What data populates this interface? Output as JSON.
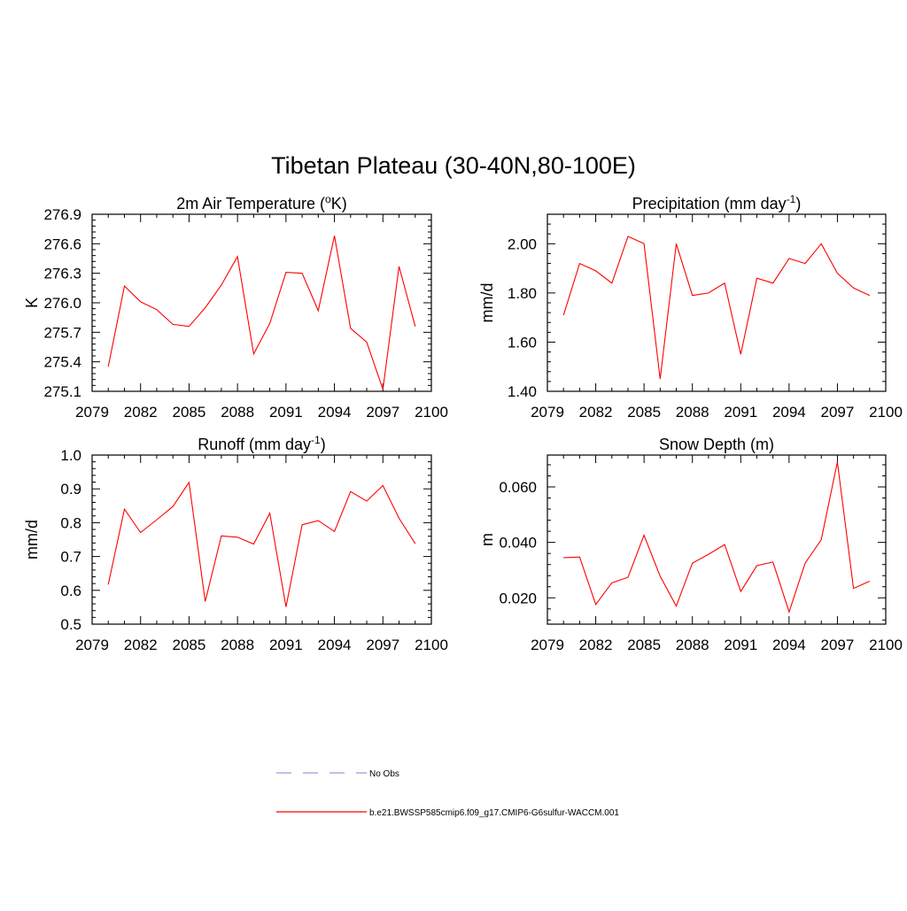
{
  "figure": {
    "title": "Tibetan Plateau (30-40N,80-100E)"
  },
  "legend": {
    "entries": [
      {
        "label": "No Obs",
        "color": "#9999dd",
        "dash": true
      },
      {
        "label": "b.e21.BWSSP585cmip6.f09_g17.CMIP6-G6sulfur-WACCM.001",
        "color": "#ff0000",
        "dash": false
      }
    ]
  },
  "chart_data": [
    {
      "type": "line",
      "title_main": "2m Air Temperature (",
      "title_sup": "o",
      "title_post": "K)",
      "ylabel": "K",
      "xlabel": "",
      "xlim": [
        2079,
        2100
      ],
      "ylim": [
        275.1,
        276.9
      ],
      "xticks": [
        2079,
        2082,
        2085,
        2088,
        2091,
        2094,
        2097,
        2100
      ],
      "yticks": [
        "275.1",
        "275.4",
        "275.7",
        "276.0",
        "276.3",
        "276.6",
        "276.9"
      ],
      "grid": false,
      "series": [
        {
          "color": "#ff0000",
          "x": [
            2080,
            2081,
            2082,
            2083,
            2084,
            2085,
            2086,
            2087,
            2088,
            2089,
            2090,
            2091,
            2092,
            2093,
            2094,
            2095,
            2096,
            2097,
            2098,
            2099
          ],
          "values": [
            275.35,
            276.17,
            276.01,
            275.93,
            275.78,
            275.76,
            275.95,
            276.18,
            276.47,
            275.48,
            275.79,
            276.31,
            276.3,
            275.92,
            276.68,
            275.74,
            275.6,
            275.12,
            276.37,
            275.76
          ]
        }
      ]
    },
    {
      "type": "line",
      "title_main": "Precipitation (mm day",
      "title_sup": "-1",
      "title_post": ")",
      "ylabel": "mm/d",
      "xlabel": "",
      "xlim": [
        2079,
        2100
      ],
      "ylim": [
        1.4,
        2.12
      ],
      "xticks": [
        2079,
        2082,
        2085,
        2088,
        2091,
        2094,
        2097,
        2100
      ],
      "yticks": [
        "1.40",
        "1.60",
        "1.80",
        "2.00"
      ],
      "grid": false,
      "series": [
        {
          "color": "#ff0000",
          "x": [
            2080,
            2081,
            2082,
            2083,
            2084,
            2085,
            2086,
            2087,
            2088,
            2089,
            2090,
            2091,
            2092,
            2093,
            2094,
            2095,
            2096,
            2097,
            2098,
            2099
          ],
          "values": [
            1.71,
            1.92,
            1.89,
            1.84,
            2.03,
            2.0,
            1.45,
            2.0,
            1.79,
            1.8,
            1.84,
            1.55,
            1.86,
            1.84,
            1.94,
            1.92,
            2.0,
            1.88,
            1.82,
            1.79
          ]
        }
      ]
    },
    {
      "type": "line",
      "title_main": "Runoff (mm day",
      "title_sup": "-1",
      "title_post": ")",
      "ylabel": "mm/d",
      "xlabel": "",
      "xlim": [
        2079,
        2100
      ],
      "ylim": [
        0.5,
        1.0
      ],
      "xticks": [
        2079,
        2082,
        2085,
        2088,
        2091,
        2094,
        2097,
        2100
      ],
      "yticks": [
        "0.5",
        "0.6",
        "0.7",
        "0.8",
        "0.9",
        "1.0"
      ],
      "grid": false,
      "series": [
        {
          "color": "#ff0000",
          "x": [
            2080,
            2081,
            2082,
            2083,
            2084,
            2085,
            2086,
            2087,
            2088,
            2089,
            2090,
            2091,
            2092,
            2093,
            2094,
            2095,
            2096,
            2097,
            2098,
            2099
          ],
          "values": [
            0.617,
            0.84,
            0.771,
            0.809,
            0.848,
            0.919,
            0.567,
            0.761,
            0.757,
            0.737,
            0.828,
            0.551,
            0.794,
            0.806,
            0.774,
            0.892,
            0.864,
            0.91,
            0.813,
            0.738
          ]
        }
      ]
    },
    {
      "type": "line",
      "title_main": "Snow Depth (m)",
      "title_sup": "",
      "title_post": "",
      "ylabel": "m",
      "xlabel": "",
      "xlim": [
        2079,
        2100
      ],
      "ylim": [
        0.0105,
        0.0715
      ],
      "xticks": [
        2079,
        2082,
        2085,
        2088,
        2091,
        2094,
        2097,
        2100
      ],
      "yticks": [
        "0.020",
        "0.040",
        "0.060"
      ],
      "grid": false,
      "series": [
        {
          "color": "#ff0000",
          "x": [
            2080,
            2081,
            2082,
            2083,
            2084,
            2085,
            2086,
            2087,
            2088,
            2089,
            2090,
            2091,
            2092,
            2093,
            2094,
            2095,
            2096,
            2097,
            2098,
            2099
          ],
          "values": [
            0.0345,
            0.0347,
            0.0176,
            0.0254,
            0.0274,
            0.0426,
            0.0278,
            0.017,
            0.0325,
            0.0357,
            0.0392,
            0.0223,
            0.0316,
            0.0329,
            0.0149,
            0.0325,
            0.041,
            0.069,
            0.0234,
            0.026
          ]
        }
      ]
    }
  ]
}
